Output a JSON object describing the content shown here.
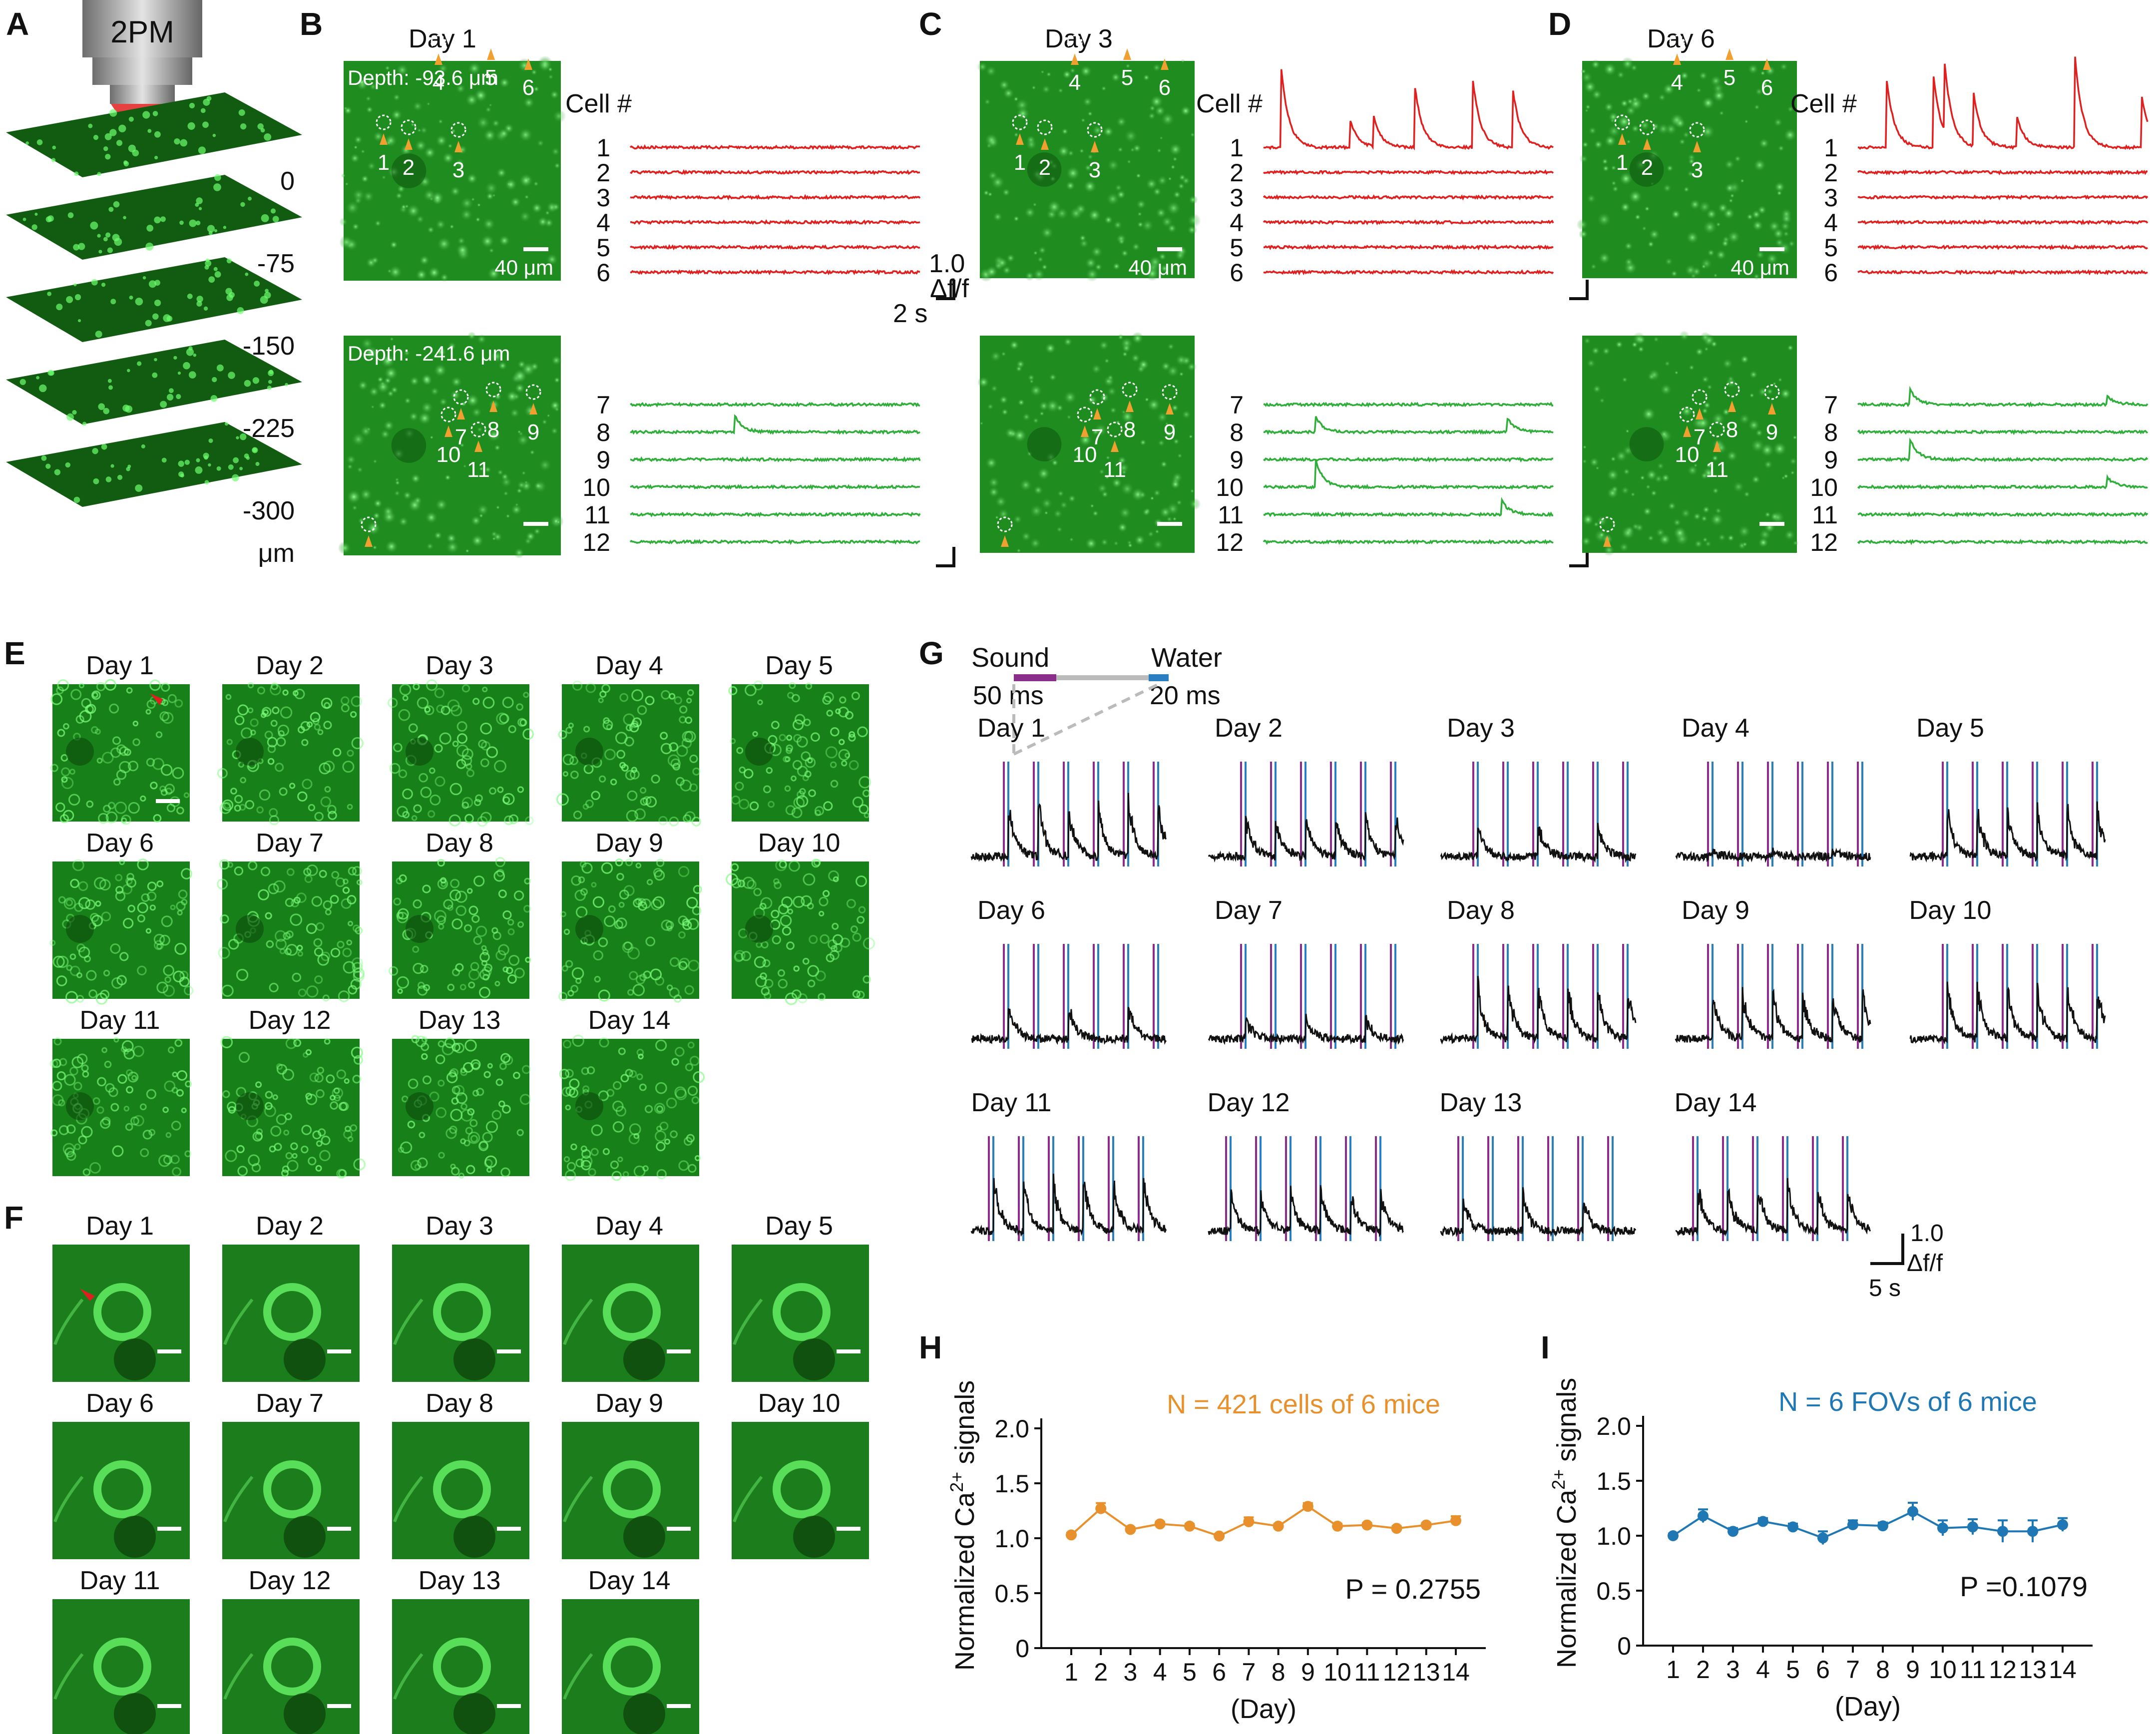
{
  "panel_letters": [
    "A",
    "B",
    "C",
    "D",
    "E",
    "F",
    "G",
    "H",
    "I"
  ],
  "panel_a": {
    "objective_label": "2PM",
    "depths": [
      "0",
      "-75",
      "-150",
      "-225",
      "-300"
    ],
    "unit": "μm"
  },
  "panels_bcd": [
    {
      "letter": "B",
      "day": "Day 1",
      "depth_top": "Depth: -93.6 μm",
      "depth_bottom": "Depth: -241.6 μm",
      "scale_label": "40 μm"
    },
    {
      "letter": "C",
      "day": "Day 3",
      "depth_top": "",
      "depth_bottom": "",
      "scale_label": "40 μm"
    },
    {
      "letter": "D",
      "day": "Day 6",
      "depth_top": "",
      "depth_bottom": "",
      "scale_label": "40 μm"
    }
  ],
  "cell_header": "Cell #",
  "cell_numbers_top": [
    "1",
    "2",
    "3",
    "4",
    "5",
    "6"
  ],
  "cell_numbers_bottom": [
    "7",
    "8",
    "9",
    "10",
    "11",
    "12"
  ],
  "trace_scale": {
    "y": "1.0",
    "y_unit": "Δf/f",
    "x": "2 s"
  },
  "days_grid": [
    "Day 1",
    "Day 2",
    "Day 3",
    "Day 4",
    "Day 5",
    "Day 6",
    "Day 7",
    "Day 8",
    "Day 9",
    "Day 10",
    "Day 11",
    "Day 12",
    "Day 13",
    "Day 14"
  ],
  "panel_g": {
    "sound_label": "Sound",
    "water_label": "Water",
    "sound_duration": "50 ms",
    "water_duration": "20 ms",
    "scale_y": "1.0",
    "scale_y_unit": "Δf/f",
    "scale_x": "5 s",
    "colors": {
      "sound": "#8b2d8b",
      "water": "#2a7fc2",
      "trace": "#111111"
    }
  },
  "chart_data": [
    {
      "type": "line",
      "panel": "H",
      "annotation": "N = 421 cells of 6 mice",
      "p_value": "P = 0.2755",
      "ylabel_main": "Normalized Ca",
      "ylabel_sup": "2+",
      "ylabel_tail": " signals",
      "xlabel": "(Day)",
      "ylim": [
        0,
        2.0
      ],
      "yticks": [
        "0",
        "0.5",
        "1.0",
        "1.5",
        "2.0"
      ],
      "x": [
        "1",
        "2",
        "3",
        "4",
        "5",
        "6",
        "7",
        "8",
        "9",
        "10",
        "11",
        "12",
        "13",
        "14"
      ],
      "values": [
        1.03,
        1.27,
        1.08,
        1.13,
        1.11,
        1.02,
        1.15,
        1.11,
        1.29,
        1.11,
        1.12,
        1.09,
        1.12,
        1.16
      ],
      "errors": [
        0.02,
        0.05,
        0.02,
        0.02,
        0.02,
        0.02,
        0.04,
        0.02,
        0.03,
        0.02,
        0.02,
        0.02,
        0.02,
        0.04
      ],
      "color": "#e8912c"
    },
    {
      "type": "line",
      "panel": "I",
      "annotation": "N = 6 FOVs of 6 mice",
      "p_value": "P =0.1079",
      "ylabel_main": "Normalized Ca",
      "ylabel_sup": "2+",
      "ylabel_tail": " signals",
      "xlabel": "(Day)",
      "ylim": [
        0,
        2.0
      ],
      "yticks": [
        "0",
        "0.5",
        "1.0",
        "1.5",
        "2.0"
      ],
      "x": [
        "1",
        "2",
        "3",
        "4",
        "5",
        "6",
        "7",
        "8",
        "9",
        "10",
        "11",
        "12",
        "13",
        "14"
      ],
      "values": [
        1.0,
        1.18,
        1.04,
        1.13,
        1.08,
        0.98,
        1.1,
        1.09,
        1.22,
        1.07,
        1.08,
        1.04,
        1.04,
        1.1
      ],
      "errors": [
        0.02,
        0.06,
        0.03,
        0.03,
        0.03,
        0.06,
        0.04,
        0.03,
        0.08,
        0.07,
        0.07,
        0.1,
        0.1,
        0.06
      ],
      "color": "#1f78b4"
    }
  ]
}
